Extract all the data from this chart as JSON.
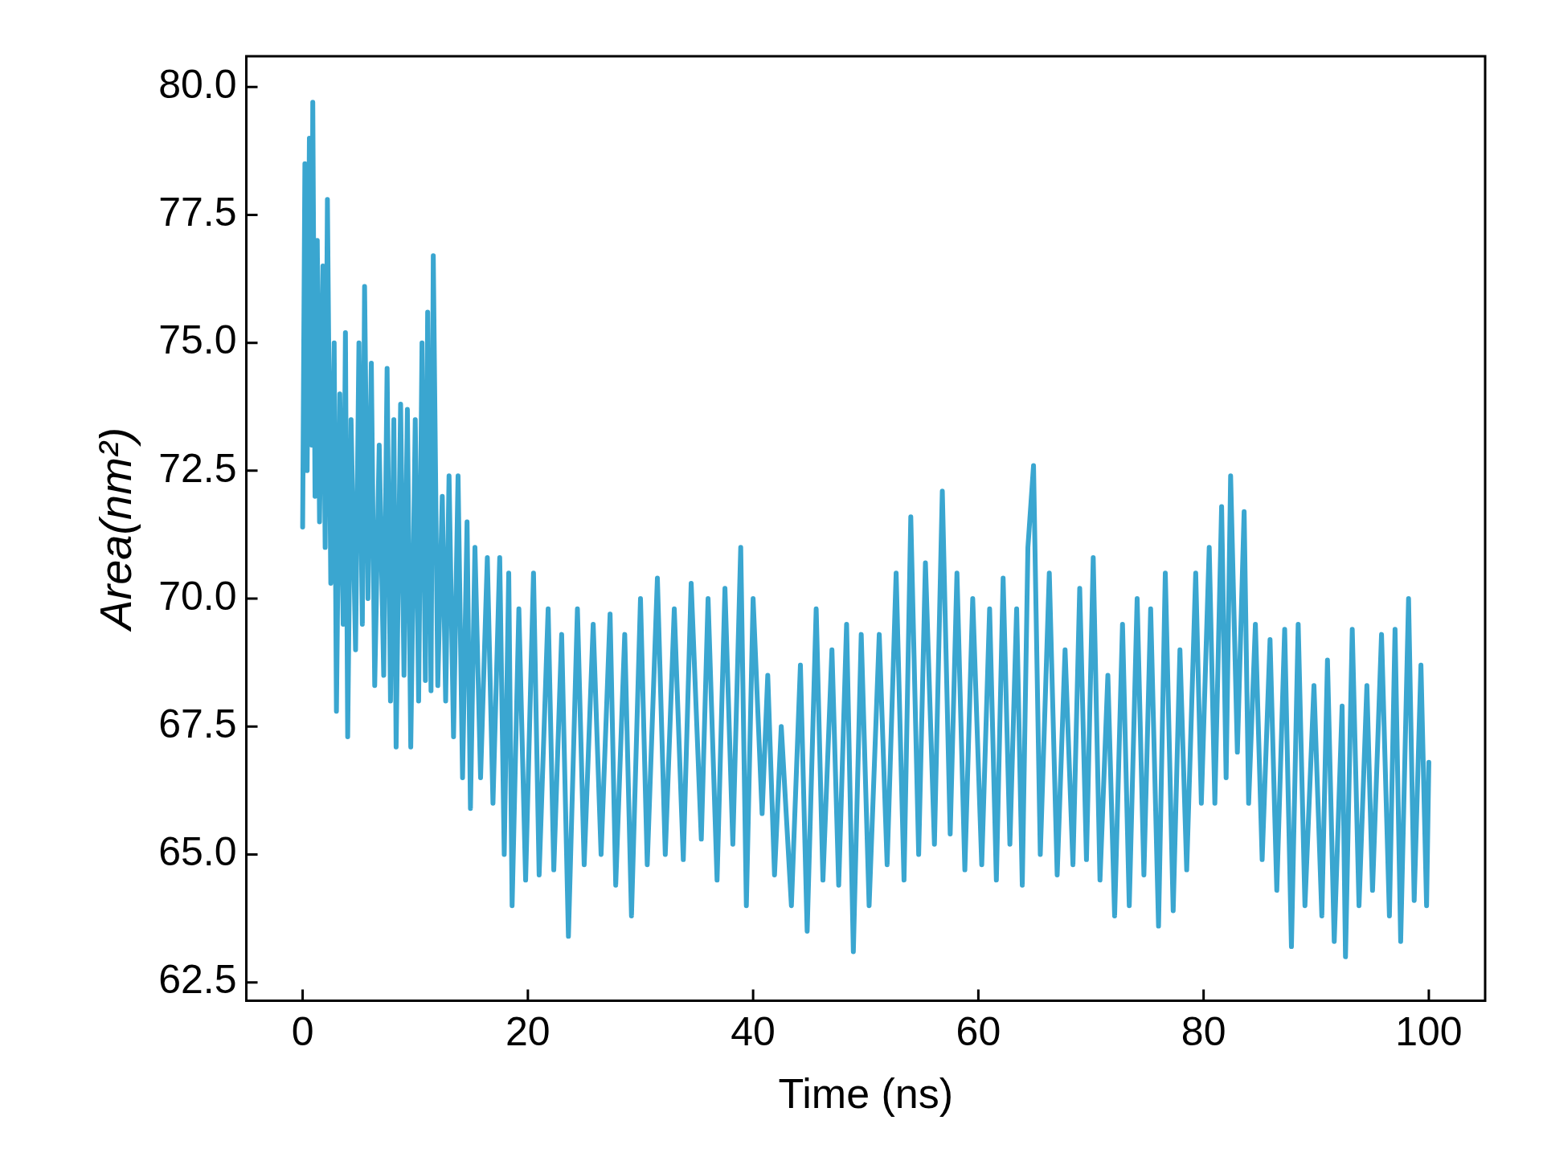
{
  "chart_data": {
    "type": "line",
    "xlabel": "Time (ns)",
    "ylabel": "Area(nm²)",
    "xlim": [
      -5,
      105
    ],
    "xticks": [
      0,
      20,
      40,
      60,
      80,
      100
    ],
    "ylim": [
      62.14,
      80.6
    ],
    "yticks": [
      {
        "value": 62.5,
        "label": "62.5"
      },
      {
        "value": 65,
        "label": "65.0"
      },
      {
        "value": 67.5,
        "label": "67.5"
      },
      {
        "value": 70,
        "label": "70.0"
      },
      {
        "value": 72.5,
        "label": "72.5"
      },
      {
        "value": 75,
        "label": "75.0"
      },
      {
        "value": 77.5,
        "label": "77.5"
      },
      {
        "value": 80,
        "label": "80.0"
      }
    ],
    "grid": false,
    "legend": false,
    "marker": "none",
    "line_style": "solid",
    "series": [
      {
        "color": "#3aa6d0",
        "x": [
          0,
          0.2,
          0.4,
          0.6,
          0.8,
          0.9,
          1.1,
          1.3,
          1.5,
          1.8,
          2.0,
          2.2,
          2.5,
          2.8,
          3.0,
          3.3,
          3.6,
          3.8,
          4.0,
          4.3,
          4.7,
          5.0,
          5.3,
          5.5,
          5.8,
          6.1,
          6.4,
          6.8,
          7.2,
          7.5,
          7.8,
          8.1,
          8.3,
          8.7,
          9.0,
          9.3,
          9.6,
          10.0,
          10.3,
          10.6,
          10.9,
          11.1,
          11.4,
          11.6,
          12.0,
          12.4,
          12.7,
          13.0,
          13.4,
          13.8,
          14.2,
          14.6,
          14.9,
          15.3,
          15.8,
          16.4,
          16.9,
          17.5,
          17.9,
          18.3,
          18.6,
          19.2,
          19.8,
          20.5,
          21.0,
          21.8,
          22.3,
          23.0,
          23.6,
          24.4,
          25.0,
          25.8,
          26.5,
          27.3,
          27.8,
          28.6,
          29.2,
          30.0,
          30.6,
          31.5,
          32.2,
          33.0,
          33.8,
          34.5,
          35.4,
          36.0,
          36.8,
          37.5,
          38.2,
          38.9,
          39.4,
          40.0,
          40.8,
          41.3,
          41.9,
          42.5,
          43.4,
          44.2,
          44.8,
          45.6,
          46.2,
          47.0,
          47.6,
          48.3,
          48.9,
          49.6,
          50.3,
          51.2,
          51.9,
          52.7,
          53.4,
          54.0,
          54.7,
          55.3,
          56.1,
          56.8,
          57.5,
          58.1,
          58.8,
          59.5,
          60.3,
          61.0,
          61.6,
          62.2,
          62.8,
          63.4,
          63.9,
          64.4,
          64.9,
          65.5,
          66.3,
          67.0,
          67.7,
          68.4,
          69.0,
          69.6,
          70.2,
          70.8,
          71.5,
          72.1,
          72.8,
          73.4,
          74.1,
          74.7,
          75.3,
          76.0,
          76.6,
          77.3,
          77.9,
          78.5,
          79.3,
          79.8,
          80.5,
          81.0,
          81.6,
          82.0,
          82.4,
          83.0,
          83.6,
          84.0,
          84.6,
          85.2,
          85.9,
          86.5,
          87.2,
          87.8,
          88.4,
          89.0,
          89.8,
          90.5,
          91.0,
          91.6,
          92.3,
          92.6,
          93.2,
          93.8,
          94.5,
          95.0,
          95.8,
          96.5,
          97.0,
          97.5,
          98.2,
          98.7,
          99.3,
          99.8,
          100
        ],
        "values": [
          71.4,
          78.5,
          72.5,
          79.0,
          73.0,
          79.7,
          72.0,
          77.0,
          71.5,
          76.5,
          71.0,
          77.8,
          70.3,
          75.0,
          67.8,
          74.0,
          69.5,
          75.2,
          67.3,
          73.5,
          69.0,
          75.0,
          69.5,
          76.1,
          70.0,
          74.6,
          68.3,
          73.0,
          68.5,
          74.5,
          68.0,
          73.5,
          67.1,
          73.8,
          68.5,
          73.7,
          67.1,
          73.5,
          68.0,
          75.0,
          68.4,
          75.6,
          68.2,
          76.7,
          68.3,
          72.0,
          68.0,
          72.4,
          67.3,
          72.4,
          66.5,
          71.5,
          65.9,
          71.0,
          66.5,
          70.8,
          66.0,
          70.8,
          65.0,
          70.5,
          64.0,
          69.8,
          64.5,
          70.5,
          64.6,
          69.8,
          64.7,
          69.3,
          63.4,
          69.8,
          64.8,
          69.5,
          65.0,
          69.7,
          64.4,
          69.3,
          63.8,
          70.0,
          64.8,
          70.4,
          65.0,
          69.8,
          64.9,
          70.3,
          65.3,
          70.0,
          64.5,
          70.2,
          65.2,
          71.0,
          64.0,
          70.0,
          65.8,
          68.5,
          64.6,
          67.5,
          64.0,
          68.7,
          63.5,
          69.8,
          64.5,
          69.0,
          64.4,
          69.5,
          63.1,
          69.3,
          64.0,
          69.3,
          64.8,
          70.5,
          64.5,
          71.6,
          65.0,
          70.7,
          65.2,
          72.1,
          65.4,
          70.5,
          64.7,
          70.0,
          64.8,
          69.8,
          64.5,
          70.4,
          65.2,
          69.8,
          64.4,
          71.0,
          72.6,
          65.0,
          70.5,
          64.6,
          69.0,
          64.8,
          70.2,
          64.9,
          70.8,
          64.5,
          68.5,
          63.8,
          69.5,
          64.0,
          70.0,
          64.6,
          69.8,
          63.6,
          70.5,
          63.9,
          69.0,
          64.7,
          70.5,
          66.0,
          71.0,
          66.0,
          71.8,
          66.5,
          72.4,
          67.0,
          71.7,
          66.0,
          69.5,
          64.9,
          69.2,
          64.3,
          69.4,
          63.2,
          69.5,
          64.0,
          68.3,
          63.8,
          68.8,
          63.3,
          67.9,
          63.0,
          69.4,
          64.0,
          68.3,
          64.3,
          69.3,
          63.8,
          69.4,
          63.3,
          70.0,
          64.1,
          68.7,
          64.0,
          66.8
        ]
      }
    ]
  }
}
